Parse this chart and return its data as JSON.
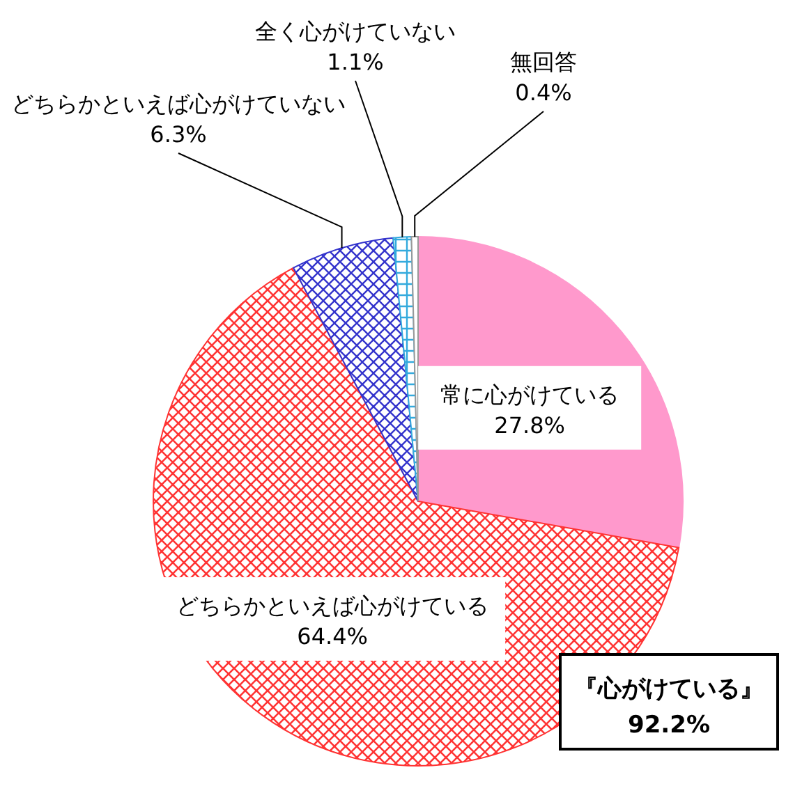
{
  "chart_data": {
    "type": "pie",
    "categories": [
      "常に心がけている",
      "どちらかといえば心がけている",
      "どちらかといえば心がけていない",
      "全く心がけていない",
      "無回答"
    ],
    "values": [
      27.8,
      64.4,
      6.3,
      1.1,
      0.4
    ],
    "value_labels": [
      "27.8%",
      "64.4%",
      "6.3%",
      "1.1%",
      "0.4%"
    ],
    "colors": [
      "#ff99cc",
      "#ff3333",
      "#3333cc",
      "#33aadd",
      "#ffffff"
    ],
    "annotations": [
      "『心がけている』\n92.2%"
    ]
  }
}
